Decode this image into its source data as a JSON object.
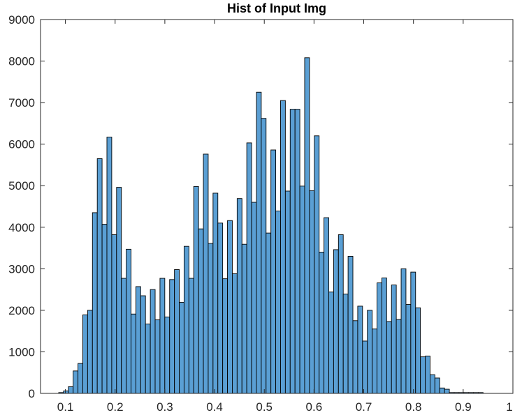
{
  "chart_data": {
    "type": "bar",
    "title": "Hist of Input Img",
    "xlabel": "",
    "ylabel": "",
    "xlim": [
      0.05,
      1.0
    ],
    "ylim": [
      0,
      9000
    ],
    "xticks": [
      0.1,
      0.2,
      0.3,
      0.4,
      0.5,
      0.6,
      0.7,
      0.8,
      0.9,
      1
    ],
    "xtick_labels": [
      "0.1",
      "0.2",
      "0.3",
      "0.4",
      "0.5",
      "0.6",
      "0.7",
      "0.8",
      "0.9",
      "1"
    ],
    "yticks": [
      0,
      1000,
      2000,
      3000,
      4000,
      5000,
      6000,
      7000,
      8000,
      9000
    ],
    "ytick_labels": [
      "0",
      "1000",
      "2000",
      "3000",
      "4000",
      "5000",
      "6000",
      "7000",
      "8000",
      "9000"
    ],
    "bin_edges_start": 0.0865,
    "bin_width": 0.0097,
    "bar_color": "#5A9FD4",
    "edge_color": "#000000",
    "values": [
      20,
      60,
      160,
      540,
      720,
      1890,
      2000,
      4350,
      5650,
      4070,
      6170,
      3820,
      4960,
      2770,
      3470,
      1910,
      2570,
      2350,
      1670,
      2500,
      1770,
      2770,
      1840,
      2740,
      2980,
      2190,
      3540,
      2770,
      4980,
      3960,
      5760,
      3610,
      4820,
      4100,
      2760,
      4160,
      2880,
      4690,
      3590,
      6030,
      4600,
      7250,
      6620,
      3860,
      5860,
      4390,
      7050,
      4870,
      6840,
      6840,
      4990,
      8080,
      4880,
      6200,
      3400,
      4230,
      2440,
      3460,
      3820,
      2390,
      3300,
      1750,
      2100,
      1260,
      2000,
      1550,
      2660,
      2780,
      1730,
      2610,
      1780,
      3000,
      2140,
      2920,
      2060,
      880,
      900,
      450,
      370,
      130,
      100,
      20,
      20,
      20,
      20,
      20,
      20,
      20
    ]
  }
}
